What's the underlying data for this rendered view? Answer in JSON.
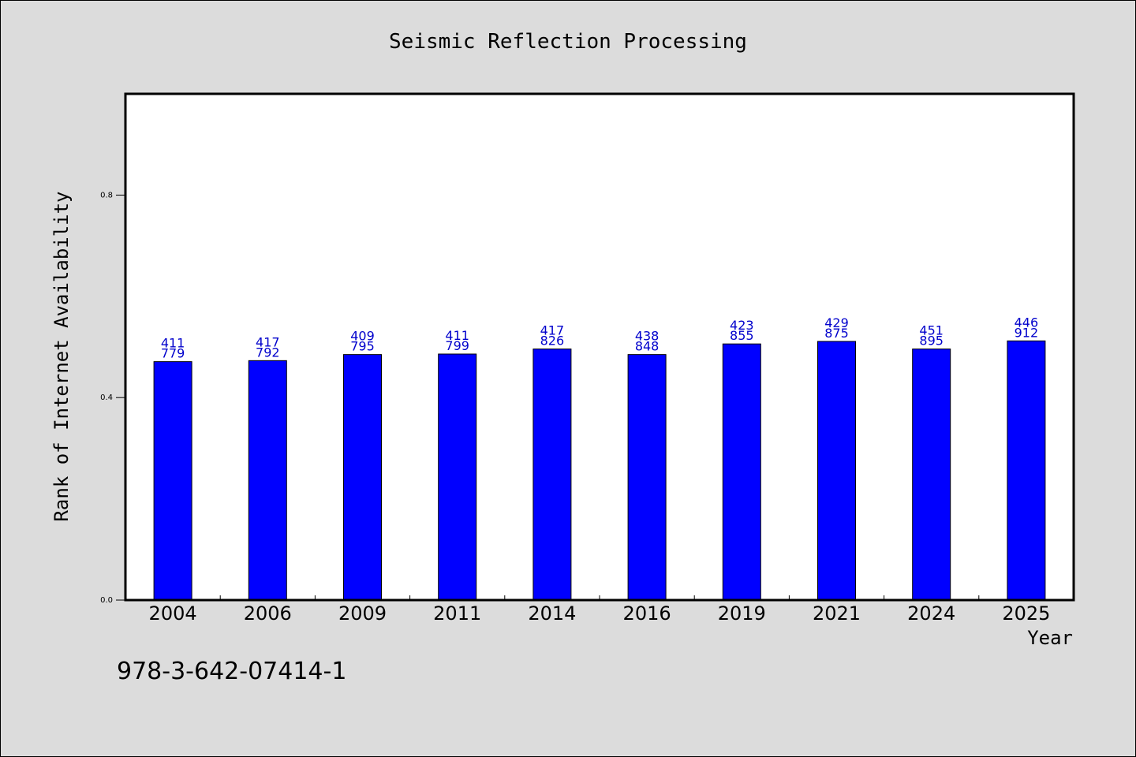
{
  "chart_data": {
    "type": "bar",
    "title": "Seismic Reflection Processing",
    "xlabel": "Year",
    "ylabel": "Rank of Internet Availability",
    "categories": [
      "2004",
      "2006",
      "2009",
      "2011",
      "2014",
      "2016",
      "2019",
      "2021",
      "2024",
      "2025"
    ],
    "values": [
      0.471,
      0.473,
      0.485,
      0.486,
      0.496,
      0.485,
      0.506,
      0.511,
      0.496,
      0.512
    ],
    "label_top": [
      "411",
      "417",
      "409",
      "411",
      "417",
      "438",
      "423",
      "429",
      "451",
      "446"
    ],
    "label_bottom": [
      "779",
      "792",
      "795",
      "799",
      "826",
      "848",
      "855",
      "875",
      "895",
      "912"
    ],
    "yticks": [
      "0.0",
      "0.4",
      "0.8"
    ],
    "ytick_values": [
      0.0,
      0.4,
      0.8
    ],
    "ylim": [
      0,
      1.0
    ],
    "bar_color": "#0000ff",
    "label_color": "#0000cc",
    "grid": false
  },
  "footer": {
    "isbn": "978-3-642-07414-1"
  }
}
